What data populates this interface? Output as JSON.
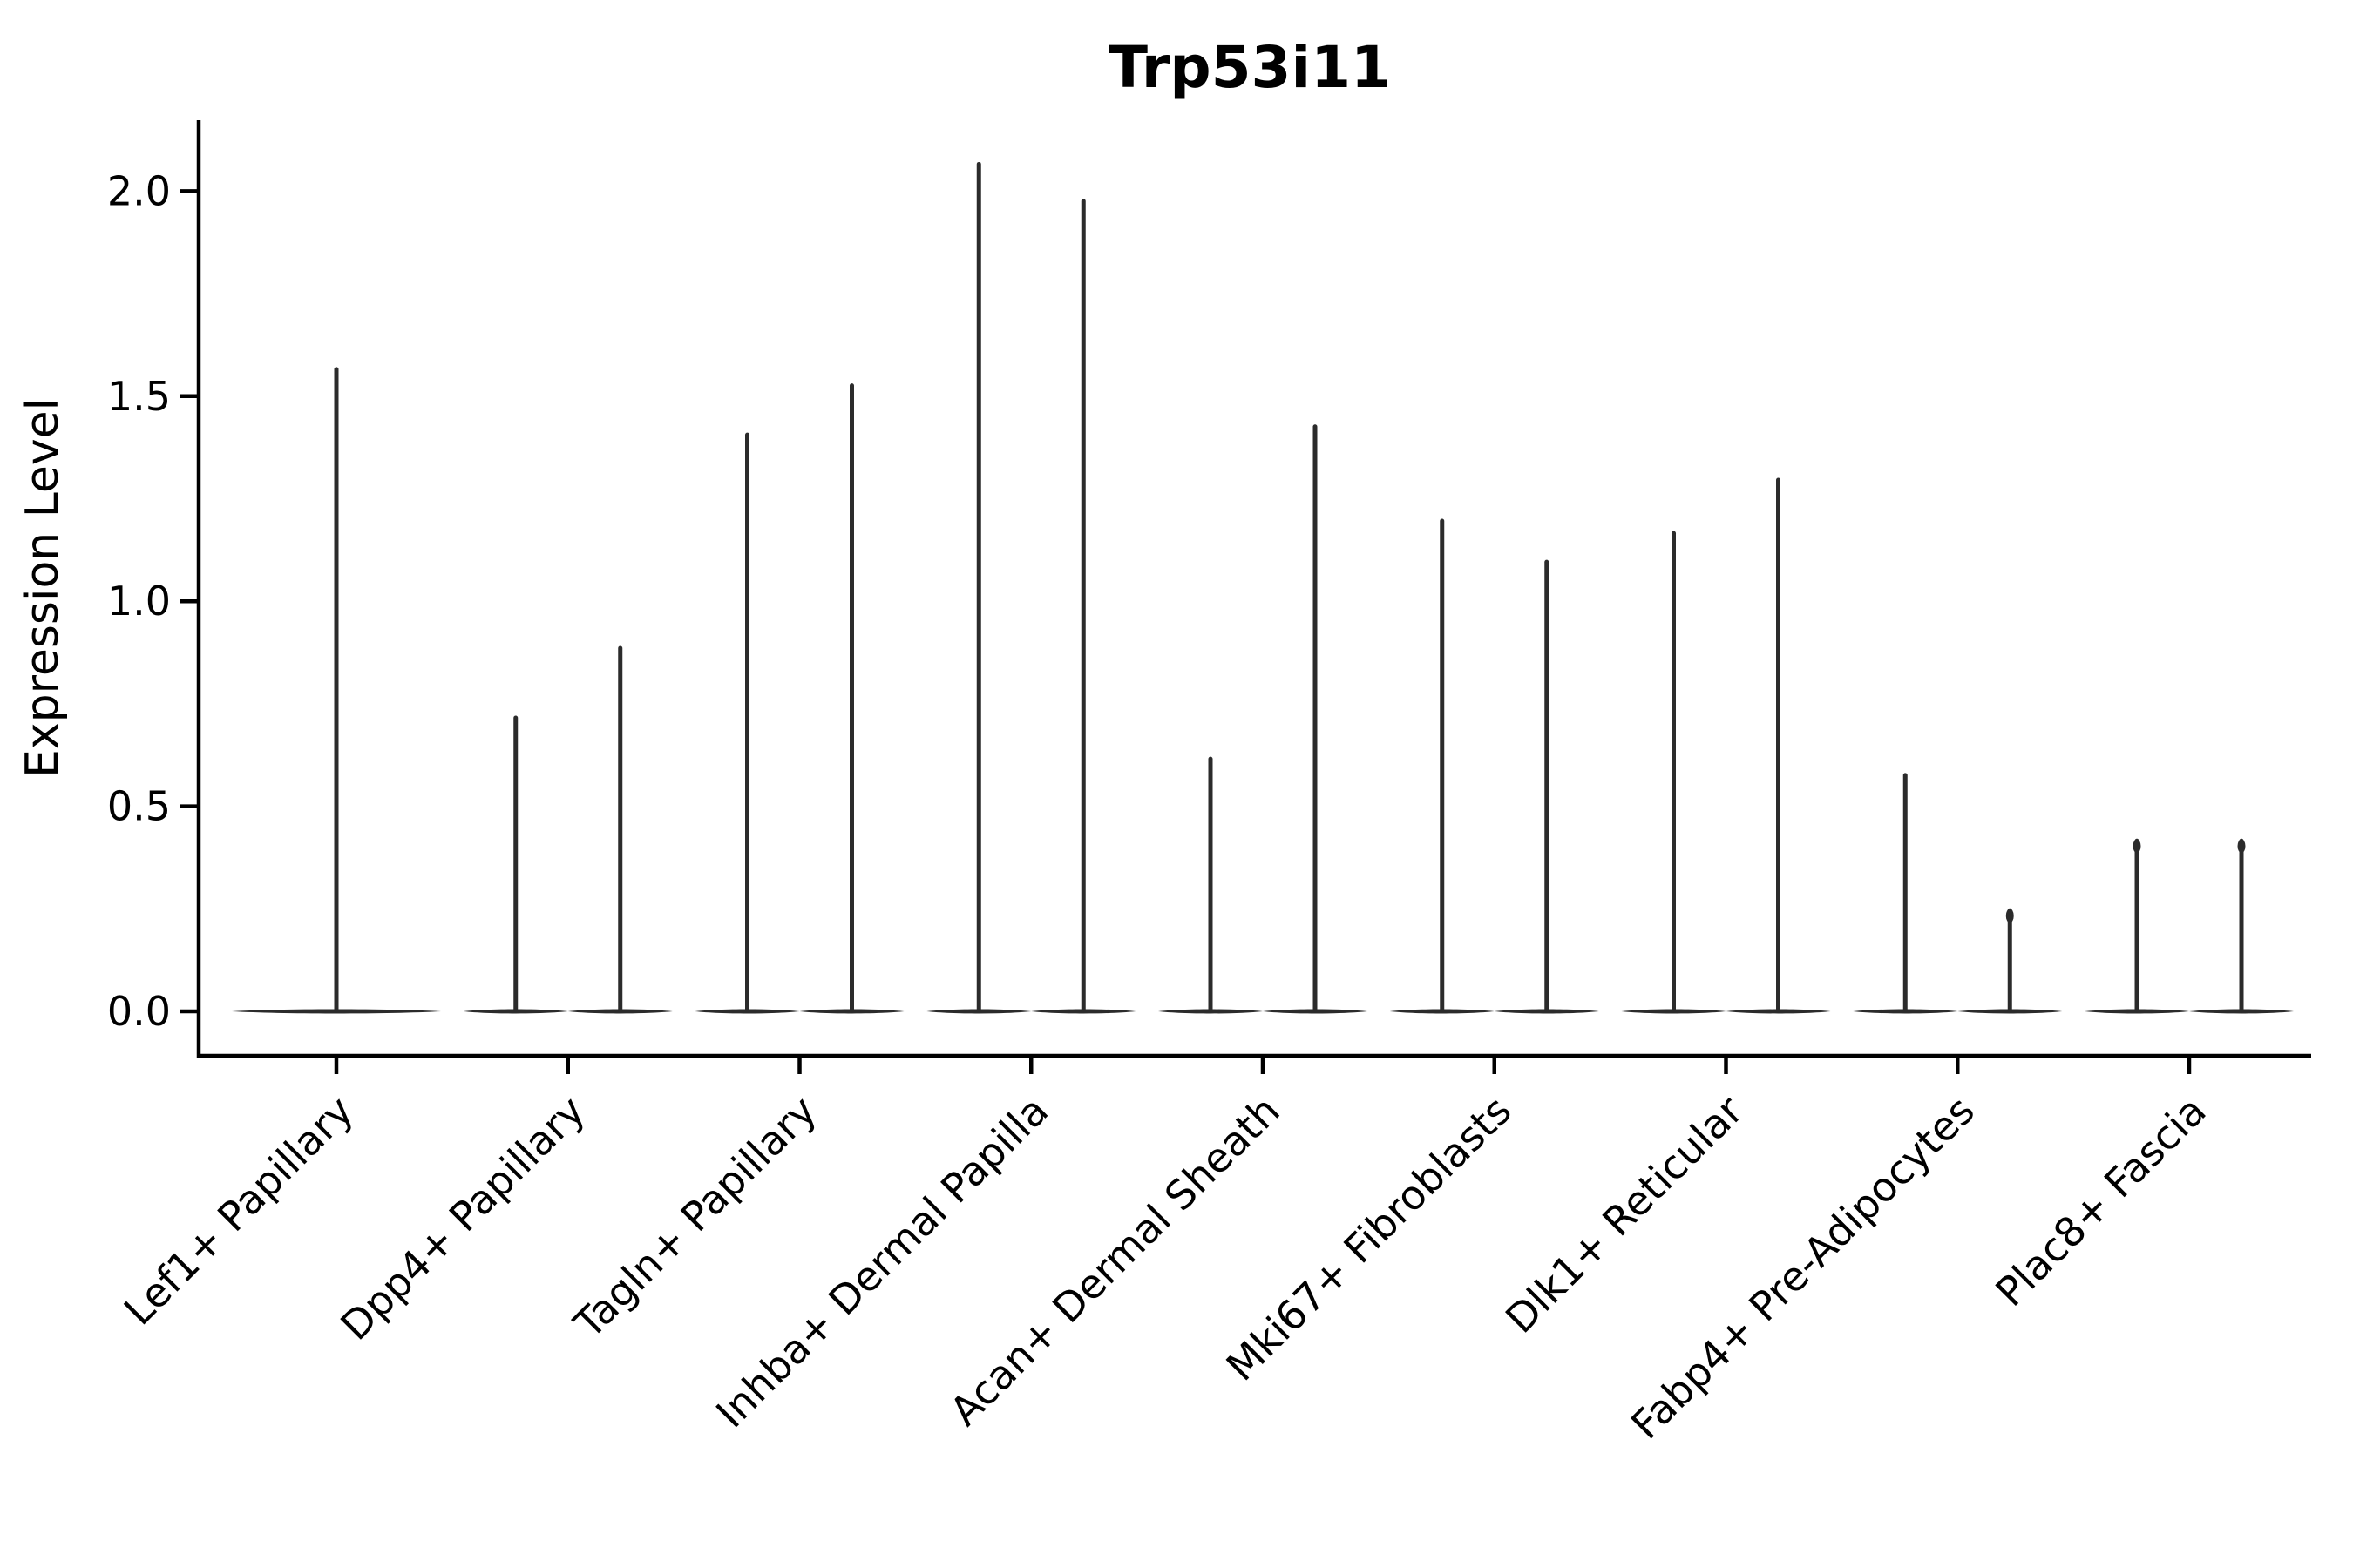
{
  "chart_data": {
    "type": "violin",
    "title": "Trp53i11",
    "xlabel": "",
    "ylabel": "Expression Level",
    "ylim": [
      -0.1,
      2.17
    ],
    "yticks": [
      "0.0",
      "0.5",
      "1.0",
      "1.5",
      "2.0"
    ],
    "grid": false,
    "legend": null,
    "x_tick_rotation_degrees": 45,
    "violin_color": "#2b2b2b",
    "axis_color": "#000000",
    "categories": [
      "Lef1+ Papillary",
      "Dpp4+ Papillary",
      "Tagln+ Papillary",
      "Inhba+ Dermal Papilla",
      "Acan+ Dermal Sheath",
      "Mki67+ Fibroblasts",
      "Dlk1+ Reticular",
      "Fabp4+ Pre-Adipocytes",
      "Plac8+ Fascia"
    ],
    "series": [
      {
        "category": "Lef1+ Papillary",
        "violin_maxima": [
          1.57
        ]
      },
      {
        "category": "Dpp4+ Papillary",
        "violin_maxima": [
          0.72,
          0.89
        ]
      },
      {
        "category": "Tagln+ Papillary",
        "violin_maxima": [
          1.41,
          1.53
        ]
      },
      {
        "category": "Inhba+ Dermal Papilla",
        "violin_maxima": [
          2.07,
          1.98
        ]
      },
      {
        "category": "Acan+ Dermal Sheath",
        "violin_maxima": [
          0.62,
          1.43
        ]
      },
      {
        "category": "Mki67+ Fibroblasts",
        "violin_maxima": [
          1.2,
          1.1
        ]
      },
      {
        "category": "Dlk1+ Reticular",
        "violin_maxima": [
          1.17,
          1.3
        ]
      },
      {
        "category": "Fabp4+ Pre-Adipocytes",
        "violin_maxima": [
          0.58,
          0.25
        ]
      },
      {
        "category": "Plac8+ Fascia",
        "violin_maxima": [
          0.42,
          0.42
        ]
      }
    ],
    "baseline_value": 0.0,
    "note": "Needle-thin violins: bulk of distribution at 0 with a thin spike to the maximum expression value per violin; two violins per category except the first, which has a single centered violin."
  }
}
